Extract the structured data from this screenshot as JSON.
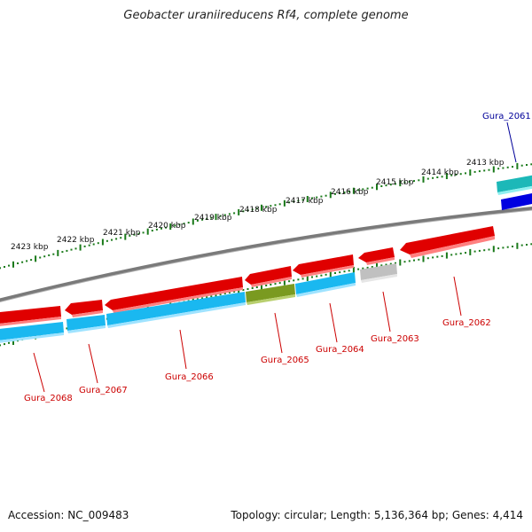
{
  "title": "Geobacter uraniireducens Rf4, complete genome",
  "footer": {
    "accession": "Accession: NC_009483",
    "summary": "Topology: circular; Length: 5,136,364 bp; Genes: 4,414"
  },
  "colors": {
    "backbone": "#8a8a8a",
    "forward_gene": "#e00000",
    "reverse_gene": "#1ab8f0",
    "rna_gene": "#1cb8b8",
    "highlight_gene": "#7a9a20",
    "pseudo_gene": "#c0c0c0",
    "blue_gene": "#0000e0",
    "tick": "#1a7a1a",
    "label_red": "#cc0000",
    "label_blue": "#000099"
  },
  "scale_labels": [
    {
      "text": "2413 kbp",
      "kbp": 2413
    },
    {
      "text": "2414 kbp",
      "kbp": 2414
    },
    {
      "text": "2415 kbp",
      "kbp": 2415
    },
    {
      "text": "2416 kbp",
      "kbp": 2416
    },
    {
      "text": "2417 kbp",
      "kbp": 2417
    },
    {
      "text": "2418 kbp",
      "kbp": 2418
    },
    {
      "text": "2419 kbp",
      "kbp": 2419
    },
    {
      "text": "2420 kbp",
      "kbp": 2420
    },
    {
      "text": "2421 kbp",
      "kbp": 2421
    },
    {
      "text": "2422 kbp",
      "kbp": 2422
    },
    {
      "text": "2423 kbp",
      "kbp": 2423
    }
  ],
  "genes": [
    {
      "label": "Gura_2061",
      "color": "blue"
    },
    {
      "label": "Gura_2062",
      "color": "red"
    },
    {
      "label": "Gura_2063",
      "color": "red"
    },
    {
      "label": "Gura_2064",
      "color": "red"
    },
    {
      "label": "Gura_2065",
      "color": "red"
    },
    {
      "label": "Gura_2066",
      "color": "red"
    },
    {
      "label": "Gura_2067",
      "color": "red"
    },
    {
      "label": "Gura_2068",
      "color": "red"
    }
  ]
}
